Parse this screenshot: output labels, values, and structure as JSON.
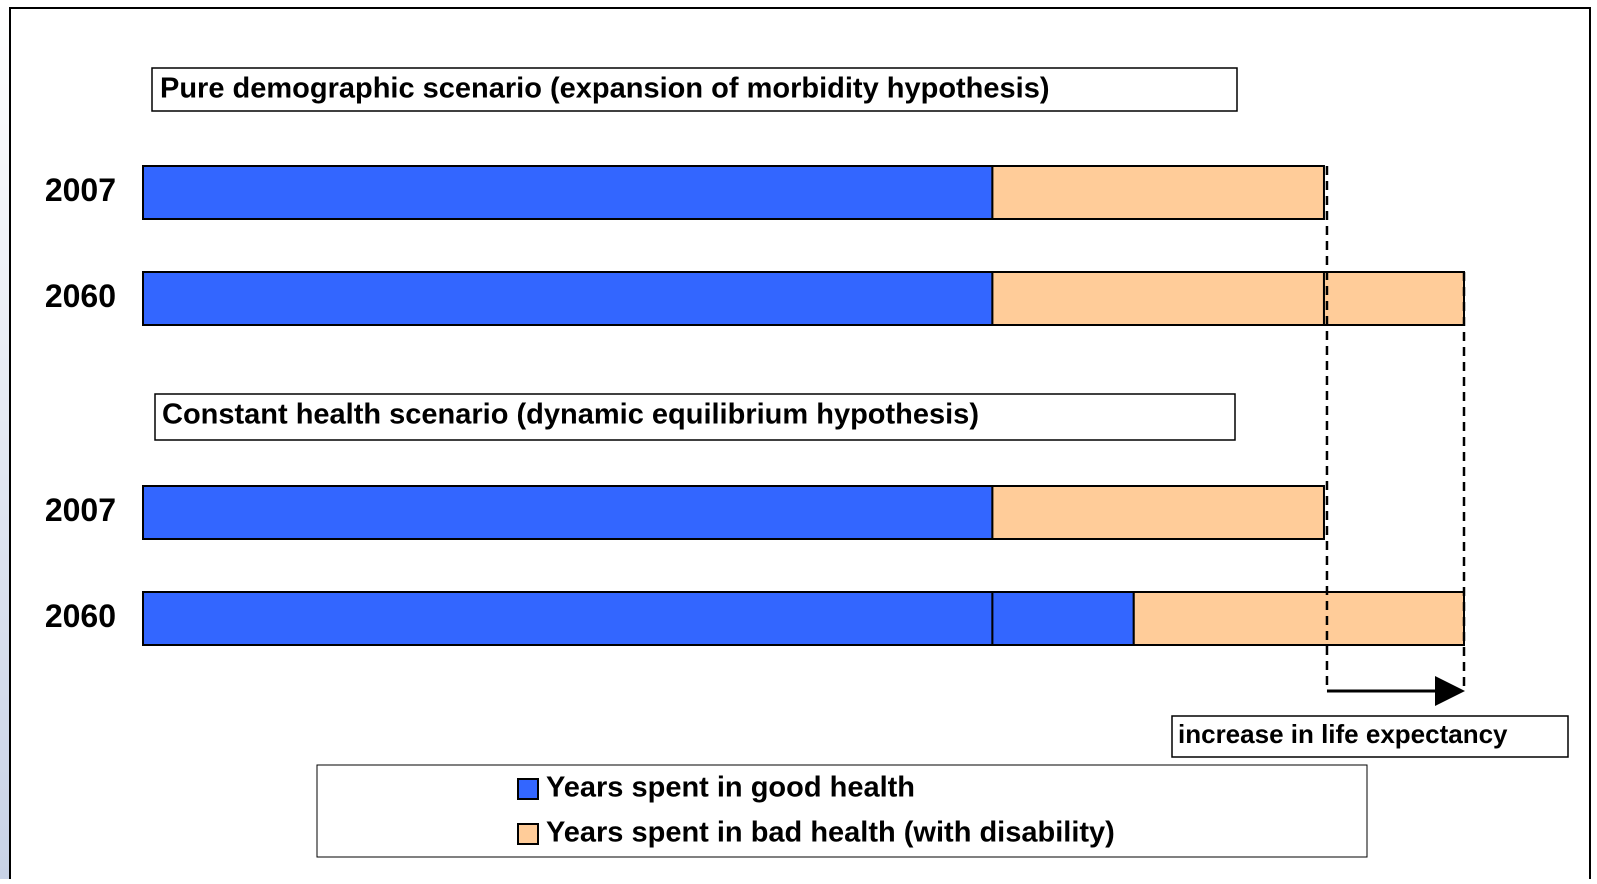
{
  "chart_data": {
    "type": "bar",
    "orientation": "horizontal",
    "stacked": true,
    "panel_titles": [
      "Pure demographic scenario (expansion of morbidity hypothesis)",
      "Constant health scenario (dynamic equilibrium hypothesis)"
    ],
    "categories": [
      "2007",
      "2060",
      "2007",
      "2060"
    ],
    "xlim": [
      0,
      100
    ],
    "series": [
      {
        "name": "Years spent in good health",
        "color": "#3366ff",
        "values": [
          [
            64.3
          ],
          [
            64.3
          ],
          [
            64.3
          ],
          [
            64.3,
            10.7
          ]
        ]
      },
      {
        "name": "Years spent in bad health (with disability)",
        "color": "#ffcc99",
        "values": [
          [
            25.1
          ],
          [
            25.1,
            10.6
          ],
          [
            25.1
          ],
          [
            25.0
          ]
        ]
      }
    ],
    "annotation": "increase in life expectancy"
  }
}
